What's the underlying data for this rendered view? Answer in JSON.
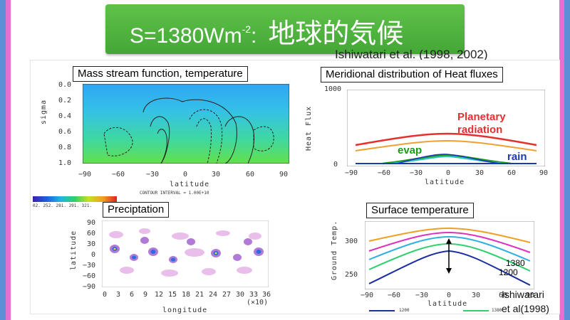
{
  "slide": {
    "title_prefix": "S=1380Wm",
    "title_sup": "-2",
    "title_colon": ":",
    "title_jp": "地球的気候",
    "cut_text": "Ishiwatari et al. (1998, 2002)"
  },
  "panels": {
    "mass_stream": {
      "title": "Mass stream function, temperature",
      "y_label": "sigma",
      "y_ticks": [
        "0.0",
        "0.2",
        "0.4",
        "0.6",
        "0.8",
        "1.0"
      ],
      "x_ticks": [
        "−90",
        "−60",
        "−30",
        "0",
        "30",
        "60",
        "90"
      ],
      "x_label": "latitude",
      "contour_note": "CONTOUR INTERVAL = 1.00E+10",
      "colorbar_labels": "02. 252. 281. 291. 321."
    },
    "heat_flux": {
      "title": "Meridional distribution of Heat fluxes",
      "y_label": "Heat Flux",
      "y_ticks": [
        "1000",
        "0"
      ],
      "x_ticks": [
        "−90",
        "−60",
        "−30",
        "0",
        "30",
        "60",
        "90"
      ],
      "x_label": "latitude",
      "label_planetary": "Planetary",
      "label_radiation": "radiation",
      "label_evap": "evap",
      "label_rain": "rain"
    },
    "precipitation": {
      "title": "Preciptation",
      "y_label": "latitude",
      "y_ticks": [
        "90",
        "60",
        "30",
        "0",
        "−30",
        "−60",
        "−90"
      ],
      "x_ticks": [
        "0",
        "3",
        "6",
        "9",
        "12",
        "15",
        "18",
        "21",
        "24",
        "27",
        "30",
        "33",
        "36"
      ],
      "x_scale": "(×10)",
      "x_label": "longitude"
    },
    "surface_temp": {
      "title": "Surface temperature",
      "y_label": "Ground Temp.",
      "y_ticks": [
        "300",
        "250"
      ],
      "x_ticks": [
        "−90",
        "−60",
        "−30",
        "0",
        "30",
        "60",
        "90"
      ],
      "x_label": "latitude",
      "annot_high": "1380",
      "annot_low": "1200",
      "legend_a": "1200",
      "legend_b": "1380",
      "citation_1": "Ishiwarari",
      "citation_2": "et al(1998)"
    }
  },
  "colors": {
    "header_green": "#4fb33e",
    "planetary": "#e53030",
    "evap": "#1a9a1a",
    "rain": "#1a3ab5"
  }
}
